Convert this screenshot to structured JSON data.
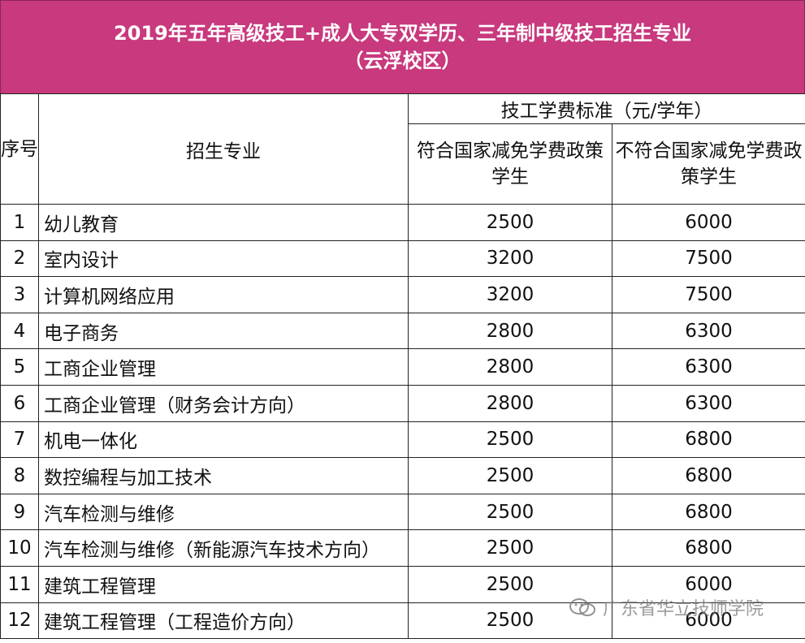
{
  "title": {
    "line1": "2019年五年高级技工+成人大专双学历、三年制中级技工招生专业",
    "line2": "（云浮校区）"
  },
  "headers": {
    "seq": "序号",
    "major": "招生专业",
    "fee_group": "技工学费标准（元/学年）",
    "eligible": "符合国家减免学费政策学生",
    "not_eligible": "不符合国家减免学费政策学生"
  },
  "rows": [
    {
      "no": "1",
      "major": "幼儿教育",
      "eligible_fee": "2500",
      "other_fee": "6000"
    },
    {
      "no": "2",
      "major": "室内设计",
      "eligible_fee": "3200",
      "other_fee": "7500"
    },
    {
      "no": "3",
      "major": "计算机网络应用",
      "eligible_fee": "3200",
      "other_fee": "7500"
    },
    {
      "no": "4",
      "major": "电子商务",
      "eligible_fee": "2800",
      "other_fee": "6300"
    },
    {
      "no": "5",
      "major": "工商企业管理",
      "eligible_fee": "2800",
      "other_fee": "6300"
    },
    {
      "no": "6",
      "major": "工商企业管理（财务会计方向）",
      "eligible_fee": "2800",
      "other_fee": "6300"
    },
    {
      "no": "7",
      "major": "机电一体化",
      "eligible_fee": "2500",
      "other_fee": "6800"
    },
    {
      "no": "8",
      "major": "数控编程与加工技术",
      "eligible_fee": "2500",
      "other_fee": "6800"
    },
    {
      "no": "9",
      "major": "汽车检测与维修",
      "eligible_fee": "2500",
      "other_fee": "6800"
    },
    {
      "no": "10",
      "major": "汽车检测与维修（新能源汽车技术方向）",
      "eligible_fee": "2500",
      "other_fee": "6800"
    },
    {
      "no": "11",
      "major": "建筑工程管理",
      "eligible_fee": "2500",
      "other_fee": "6000"
    },
    {
      "no": "12",
      "major": "建筑工程管理（工程造价方向）",
      "eligible_fee": "2500",
      "other_fee": "6000"
    }
  ],
  "watermark": {
    "icon": "wechat-icon",
    "text": "广东省华立技师学院"
  },
  "colors": {
    "title_bg": "#c8397d",
    "title_text": "#ffffff"
  }
}
